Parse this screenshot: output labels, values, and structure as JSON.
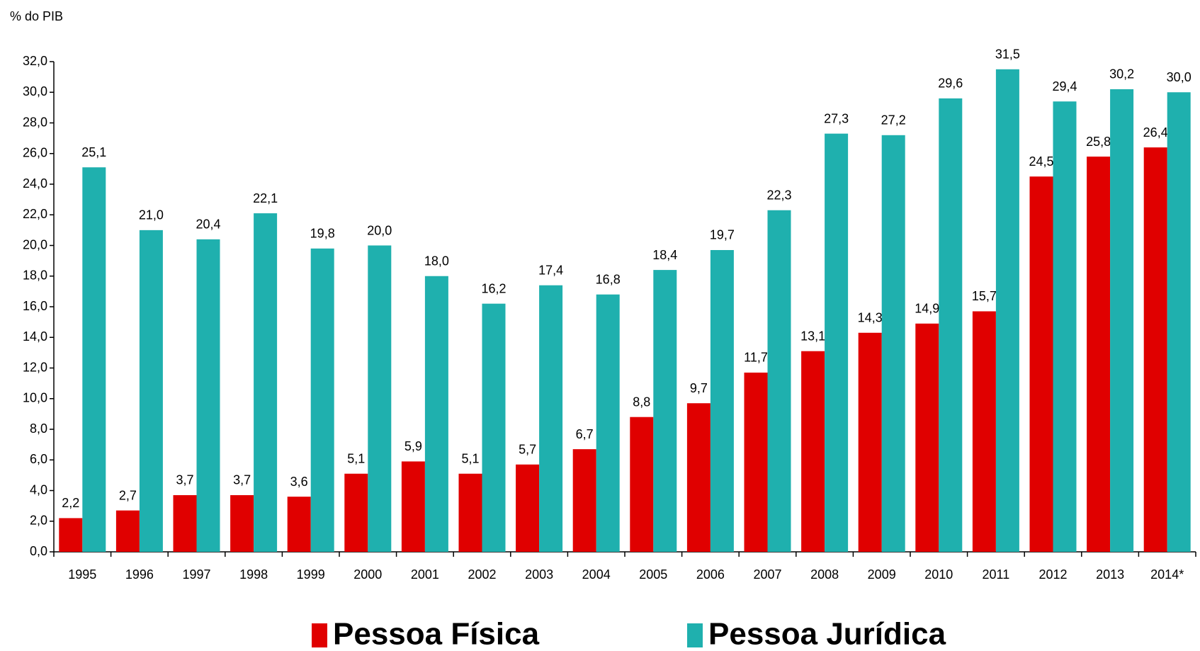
{
  "chart_data": {
    "type": "bar",
    "y_label": "% do PIB",
    "categories": [
      "1995",
      "1996",
      "1997",
      "1998",
      "1999",
      "2000",
      "2001",
      "2002",
      "2003",
      "2004",
      "2005",
      "2006",
      "2007",
      "2008",
      "2009",
      "2010",
      "2011",
      "2012",
      "2013",
      "2014*"
    ],
    "series": [
      {
        "name": "Pessoa Física",
        "color": "#e00000",
        "values": [
          2.2,
          2.7,
          3.7,
          3.7,
          3.6,
          5.1,
          5.9,
          5.1,
          5.7,
          6.7,
          8.8,
          9.7,
          11.7,
          13.1,
          14.3,
          14.9,
          15.7,
          24.5,
          25.8,
          26.4
        ],
        "value_labels": [
          "2,2",
          "2,7",
          "3,7",
          "3,7",
          "3,6",
          "5,1",
          "5,9",
          "5,1",
          "5,7",
          "6,7",
          "8,8",
          "9,7",
          "11,7",
          "13,1",
          "14,3",
          "14,9",
          "15,7",
          "24,5",
          "25,8",
          "26,4"
        ]
      },
      {
        "name": "Pessoa Jurídica",
        "color": "#1fb0ae",
        "values": [
          25.1,
          21.0,
          20.4,
          22.1,
          19.8,
          20.0,
          18.0,
          16.2,
          17.4,
          16.8,
          18.4,
          19.7,
          22.3,
          27.3,
          27.2,
          29.6,
          31.5,
          29.4,
          30.2,
          30.0
        ],
        "value_labels": [
          "25,1",
          "21,0",
          "20,4",
          "22,1",
          "19,8",
          "20,0",
          "18,0",
          "16,2",
          "17,4",
          "16,8",
          "18,4",
          "19,7",
          "22,3",
          "27,3",
          "27,2",
          "29,6",
          "31,5",
          "29,4",
          "30,2",
          "30,0"
        ]
      }
    ],
    "ylim": [
      0,
      32
    ],
    "yticks": [
      {
        "value": 0,
        "label": "0,0"
      },
      {
        "value": 2,
        "label": "2,0"
      },
      {
        "value": 4,
        "label": "4,0"
      },
      {
        "value": 6,
        "label": "6,0"
      },
      {
        "value": 8,
        "label": "8,0"
      },
      {
        "value": 10,
        "label": "10,0"
      },
      {
        "value": 12,
        "label": "12,0"
      },
      {
        "value": 14,
        "label": "14,0"
      },
      {
        "value": 16,
        "label": "16,0"
      },
      {
        "value": 18,
        "label": "18,0"
      },
      {
        "value": 20,
        "label": "20,0"
      },
      {
        "value": 22,
        "label": "22,0"
      },
      {
        "value": 24,
        "label": "24,0"
      },
      {
        "value": 26,
        "label": "26,0"
      },
      {
        "value": 28,
        "label": "28,0"
      },
      {
        "value": 30,
        "label": "30,0"
      },
      {
        "value": 32,
        "label": "32,0"
      }
    ],
    "grid": false,
    "legend": "bottom"
  }
}
